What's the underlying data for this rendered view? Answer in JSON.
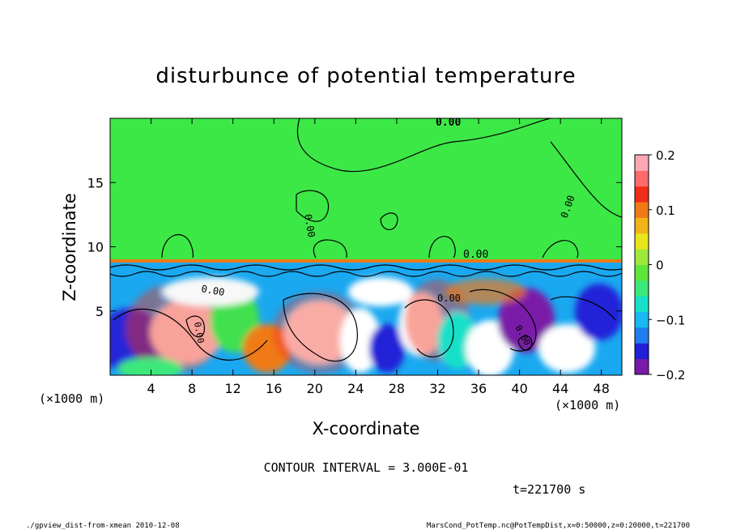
{
  "chart_data": {
    "type": "heatmap",
    "title": "disturbunce of potential temperature",
    "xlabel": "X-coordinate",
    "ylabel": "Z-coordinate",
    "x_unit_left": "(×1000 m)",
    "x_unit_right": "(×1000 m)",
    "xlim": [
      0,
      50
    ],
    "ylim": [
      0,
      20
    ],
    "x_ticks": [
      4,
      8,
      12,
      16,
      20,
      24,
      28,
      32,
      36,
      40,
      44,
      48
    ],
    "y_ticks": [
      5,
      10,
      15
    ],
    "contour_interval_text": "CONTOUR INTERVAL = 3.000E-01",
    "contour_labels": [
      "0.00",
      "0.00",
      "0.00",
      "0.00",
      "0.00",
      "0.00",
      "0.00",
      "0.00"
    ],
    "colorbar": {
      "range": [
        -0.2,
        0.2
      ],
      "ticks": [
        "0.2",
        "0.1",
        "0",
        "−0.1",
        "−0.2"
      ],
      "tick_values": [
        0.2,
        0.1,
        0,
        -0.1,
        -0.2
      ],
      "colors": [
        "#7a1aa8",
        "#2020d8",
        "#1f7df0",
        "#18b8f0",
        "#18e0c8",
        "#3ce87a",
        "#5ee53a",
        "#9ee83c",
        "#e8e41e",
        "#f0b418",
        "#f07a18",
        "#f02d18",
        "#ff6a6a",
        "#ffa8b4"
      ]
    },
    "upper_layer": {
      "z_range": [
        9,
        20
      ],
      "value": 0
    },
    "interface_height": 9,
    "time_text": "t=221700 s"
  },
  "footer": {
    "left": "./gpview_dist-from-xmean   2010-12-08",
    "right": "MarsCond_PotTemp.nc@PotTempDist,x=0:50000,z=0:20000,t=221700"
  }
}
